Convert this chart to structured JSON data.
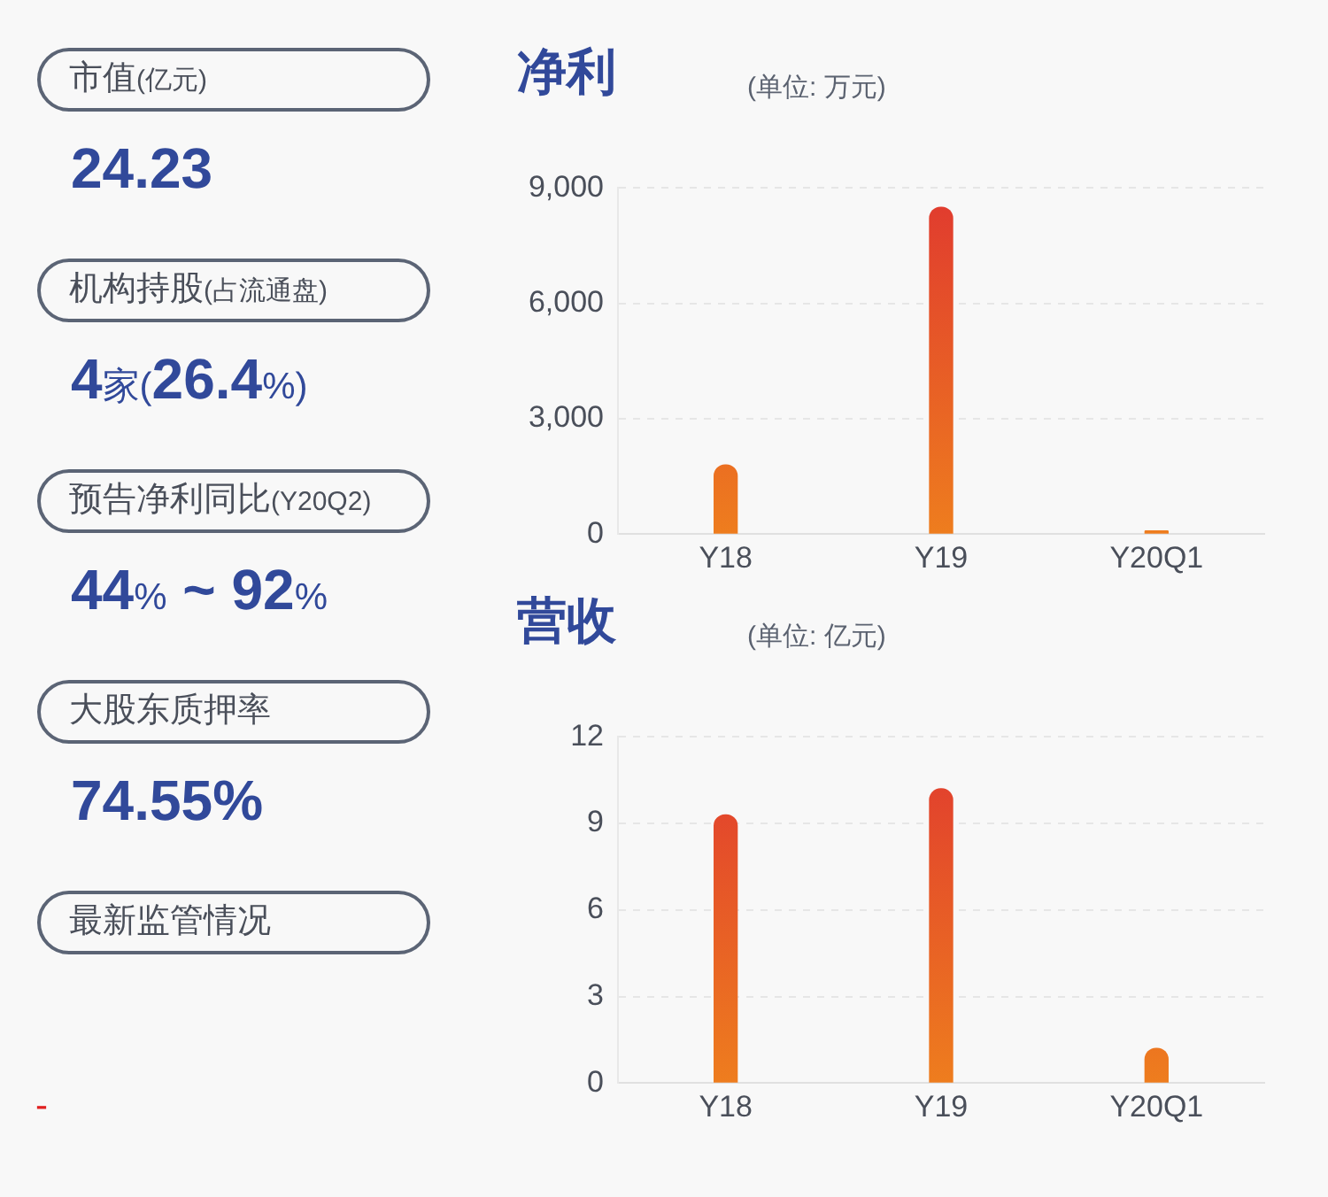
{
  "chart_data": [
    {
      "type": "other",
      "annotations": [
        "市值(亿元)",
        "24.23",
        "机构持股(占流通盘)",
        "4家(26.4%)",
        "预告净利同比(Y20Q2)",
        "44% ~ 92%",
        "大股东质押率",
        "74.55%",
        "最新监管情况",
        "-"
      ]
    },
    {
      "type": "bar",
      "title": "净利",
      "subtitle": "(单位: 万元)",
      "categories": [
        "Y18",
        "Y19",
        "Y20Q1"
      ],
      "values": [
        1800,
        8500,
        80
      ],
      "color": "#e0392f",
      "ylim": [
        0,
        9000
      ],
      "yticks": [
        {
          "value": 0,
          "label": "0"
        },
        {
          "value": 3000,
          "label": "3,000"
        },
        {
          "value": 6000,
          "label": "6,000"
        },
        {
          "value": 9000,
          "label": "9,000"
        }
      ],
      "grid": "y"
    },
    {
      "type": "bar",
      "title": "营收",
      "subtitle": "(单位: 亿元)",
      "categories": [
        "Y18",
        "Y19",
        "Y20Q1"
      ],
      "values": [
        9.3,
        10.2,
        1.2
      ],
      "color": "#e0392f",
      "ylim": [
        0,
        12
      ],
      "yticks": [
        0,
        3,
        6,
        9,
        12
      ],
      "grid": "y"
    }
  ]
}
